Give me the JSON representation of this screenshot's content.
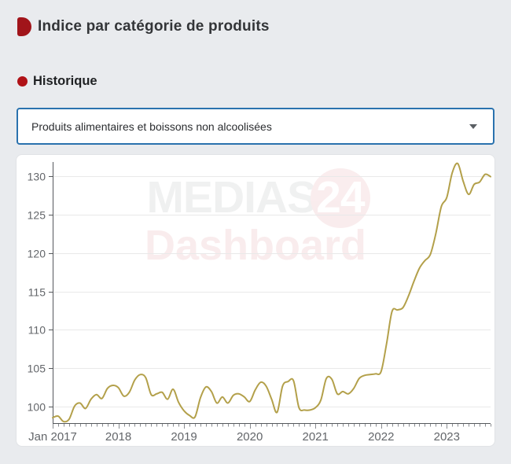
{
  "header": {
    "title": "Indice par catégorie de produits"
  },
  "section": {
    "title": "Historique"
  },
  "dropdown": {
    "selected_option": "Produits alimentaires et boissons non alcoolisées"
  },
  "watermark": {
    "brand_gray": "MEDIAS",
    "brand_number": "24",
    "subtitle": "Dashboard"
  },
  "colors": {
    "accent_red": "#a1141a",
    "bullet_red": "#b01217",
    "dropdown_border_blue": "#2a72ae",
    "line_gold": "#b3a04a",
    "axis_gray": "#55585c",
    "grid_gray": "#e9e9e9",
    "tick_label_gray": "#63666a",
    "page_background": "#e9ebee"
  },
  "chart_data": {
    "type": "line",
    "title": "",
    "xlabel": "",
    "ylabel": "",
    "frequency": "monthly",
    "x_start": "Jan 2017",
    "x_end": "Sep 2023",
    "x_tick_labels": [
      "Jan 2017",
      "2018",
      "2019",
      "2020",
      "2021",
      "2022",
      "2023"
    ],
    "y_ticks": [
      100,
      105,
      110,
      115,
      120,
      125,
      130
    ],
    "ylim": [
      97.9,
      131.8
    ],
    "grid": "horizontal",
    "legend": "none",
    "series": [
      {
        "name": "Produits alimentaires et boissons non alcoolisées",
        "color": "#b3a04a",
        "values": [
          98.6,
          98.8,
          98.1,
          98.4,
          100.1,
          100.5,
          99.8,
          101.0,
          101.6,
          101.1,
          102.4,
          102.8,
          102.5,
          101.4,
          101.9,
          103.5,
          104.2,
          103.8,
          101.6,
          101.7,
          101.9,
          101.0,
          102.3,
          100.6,
          99.5,
          98.9,
          98.7,
          101.2,
          102.6,
          102.0,
          100.5,
          101.3,
          100.5,
          101.5,
          101.7,
          101.3,
          100.7,
          102.2,
          103.2,
          102.7,
          101.0,
          99.3,
          102.7,
          103.3,
          103.4,
          99.9,
          99.6,
          99.6,
          99.9,
          100.9,
          103.7,
          103.6,
          101.7,
          102.0,
          101.7,
          102.4,
          103.7,
          104.1,
          104.2,
          104.3,
          104.6,
          108.2,
          112.4,
          112.6,
          112.9,
          114.4,
          116.3,
          118.0,
          119.0,
          119.8,
          122.5,
          126.0,
          127.2,
          130.4,
          131.6,
          129.3,
          127.6,
          128.9,
          129.2,
          130.2,
          129.9
        ]
      }
    ]
  }
}
